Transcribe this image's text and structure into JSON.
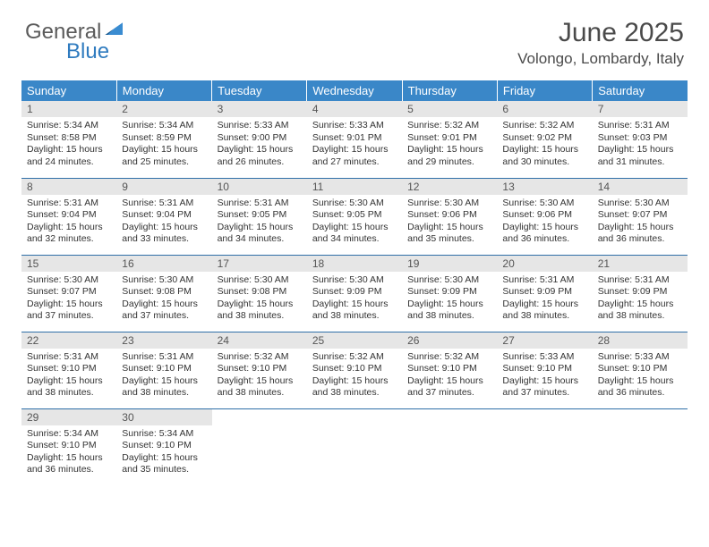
{
  "logo": {
    "text1": "General",
    "text2": "Blue"
  },
  "title": "June 2025",
  "location": "Volongo, Lombardy, Italy",
  "colors": {
    "header_bg": "#3a87c8",
    "header_text": "#ffffff",
    "daynum_bg": "#e6e6e6",
    "daynum_text": "#555555",
    "row_border": "#2f6fa8",
    "body_text": "#333333",
    "title_text": "#4a4a4a",
    "logo_gray": "#5b5b5b",
    "logo_blue": "#2f7bbf",
    "background": "#ffffff"
  },
  "typography": {
    "title_fontsize": 30,
    "location_fontsize": 17,
    "th_fontsize": 13,
    "daynum_fontsize": 12,
    "cell_fontsize": 10.5,
    "font_family": "Arial"
  },
  "columns": [
    "Sunday",
    "Monday",
    "Tuesday",
    "Wednesday",
    "Thursday",
    "Friday",
    "Saturday"
  ],
  "weeks": [
    [
      {
        "n": "1",
        "sunrise": "5:34 AM",
        "sunset": "8:58 PM",
        "dh": "15",
        "dm": "24"
      },
      {
        "n": "2",
        "sunrise": "5:34 AM",
        "sunset": "8:59 PM",
        "dh": "15",
        "dm": "25"
      },
      {
        "n": "3",
        "sunrise": "5:33 AM",
        "sunset": "9:00 PM",
        "dh": "15",
        "dm": "26"
      },
      {
        "n": "4",
        "sunrise": "5:33 AM",
        "sunset": "9:01 PM",
        "dh": "15",
        "dm": "27"
      },
      {
        "n": "5",
        "sunrise": "5:32 AM",
        "sunset": "9:01 PM",
        "dh": "15",
        "dm": "29"
      },
      {
        "n": "6",
        "sunrise": "5:32 AM",
        "sunset": "9:02 PM",
        "dh": "15",
        "dm": "30"
      },
      {
        "n": "7",
        "sunrise": "5:31 AM",
        "sunset": "9:03 PM",
        "dh": "15",
        "dm": "31"
      }
    ],
    [
      {
        "n": "8",
        "sunrise": "5:31 AM",
        "sunset": "9:04 PM",
        "dh": "15",
        "dm": "32"
      },
      {
        "n": "9",
        "sunrise": "5:31 AM",
        "sunset": "9:04 PM",
        "dh": "15",
        "dm": "33"
      },
      {
        "n": "10",
        "sunrise": "5:31 AM",
        "sunset": "9:05 PM",
        "dh": "15",
        "dm": "34"
      },
      {
        "n": "11",
        "sunrise": "5:30 AM",
        "sunset": "9:05 PM",
        "dh": "15",
        "dm": "34"
      },
      {
        "n": "12",
        "sunrise": "5:30 AM",
        "sunset": "9:06 PM",
        "dh": "15",
        "dm": "35"
      },
      {
        "n": "13",
        "sunrise": "5:30 AM",
        "sunset": "9:06 PM",
        "dh": "15",
        "dm": "36"
      },
      {
        "n": "14",
        "sunrise": "5:30 AM",
        "sunset": "9:07 PM",
        "dh": "15",
        "dm": "36"
      }
    ],
    [
      {
        "n": "15",
        "sunrise": "5:30 AM",
        "sunset": "9:07 PM",
        "dh": "15",
        "dm": "37"
      },
      {
        "n": "16",
        "sunrise": "5:30 AM",
        "sunset": "9:08 PM",
        "dh": "15",
        "dm": "37"
      },
      {
        "n": "17",
        "sunrise": "5:30 AM",
        "sunset": "9:08 PM",
        "dh": "15",
        "dm": "38"
      },
      {
        "n": "18",
        "sunrise": "5:30 AM",
        "sunset": "9:09 PM",
        "dh": "15",
        "dm": "38"
      },
      {
        "n": "19",
        "sunrise": "5:30 AM",
        "sunset": "9:09 PM",
        "dh": "15",
        "dm": "38"
      },
      {
        "n": "20",
        "sunrise": "5:31 AM",
        "sunset": "9:09 PM",
        "dh": "15",
        "dm": "38"
      },
      {
        "n": "21",
        "sunrise": "5:31 AM",
        "sunset": "9:09 PM",
        "dh": "15",
        "dm": "38"
      }
    ],
    [
      {
        "n": "22",
        "sunrise": "5:31 AM",
        "sunset": "9:10 PM",
        "dh": "15",
        "dm": "38"
      },
      {
        "n": "23",
        "sunrise": "5:31 AM",
        "sunset": "9:10 PM",
        "dh": "15",
        "dm": "38"
      },
      {
        "n": "24",
        "sunrise": "5:32 AM",
        "sunset": "9:10 PM",
        "dh": "15",
        "dm": "38"
      },
      {
        "n": "25",
        "sunrise": "5:32 AM",
        "sunset": "9:10 PM",
        "dh": "15",
        "dm": "38"
      },
      {
        "n": "26",
        "sunrise": "5:32 AM",
        "sunset": "9:10 PM",
        "dh": "15",
        "dm": "37"
      },
      {
        "n": "27",
        "sunrise": "5:33 AM",
        "sunset": "9:10 PM",
        "dh": "15",
        "dm": "37"
      },
      {
        "n": "28",
        "sunrise": "5:33 AM",
        "sunset": "9:10 PM",
        "dh": "15",
        "dm": "36"
      }
    ],
    [
      {
        "n": "29",
        "sunrise": "5:34 AM",
        "sunset": "9:10 PM",
        "dh": "15",
        "dm": "36"
      },
      {
        "n": "30",
        "sunrise": "5:34 AM",
        "sunset": "9:10 PM",
        "dh": "15",
        "dm": "35"
      },
      null,
      null,
      null,
      null,
      null
    ]
  ],
  "labels": {
    "sunrise_prefix": "Sunrise: ",
    "sunset_prefix": "Sunset: ",
    "daylight_prefix": "Daylight: ",
    "hours_word": " hours",
    "and_word": "and ",
    "minutes_word": " minutes."
  }
}
